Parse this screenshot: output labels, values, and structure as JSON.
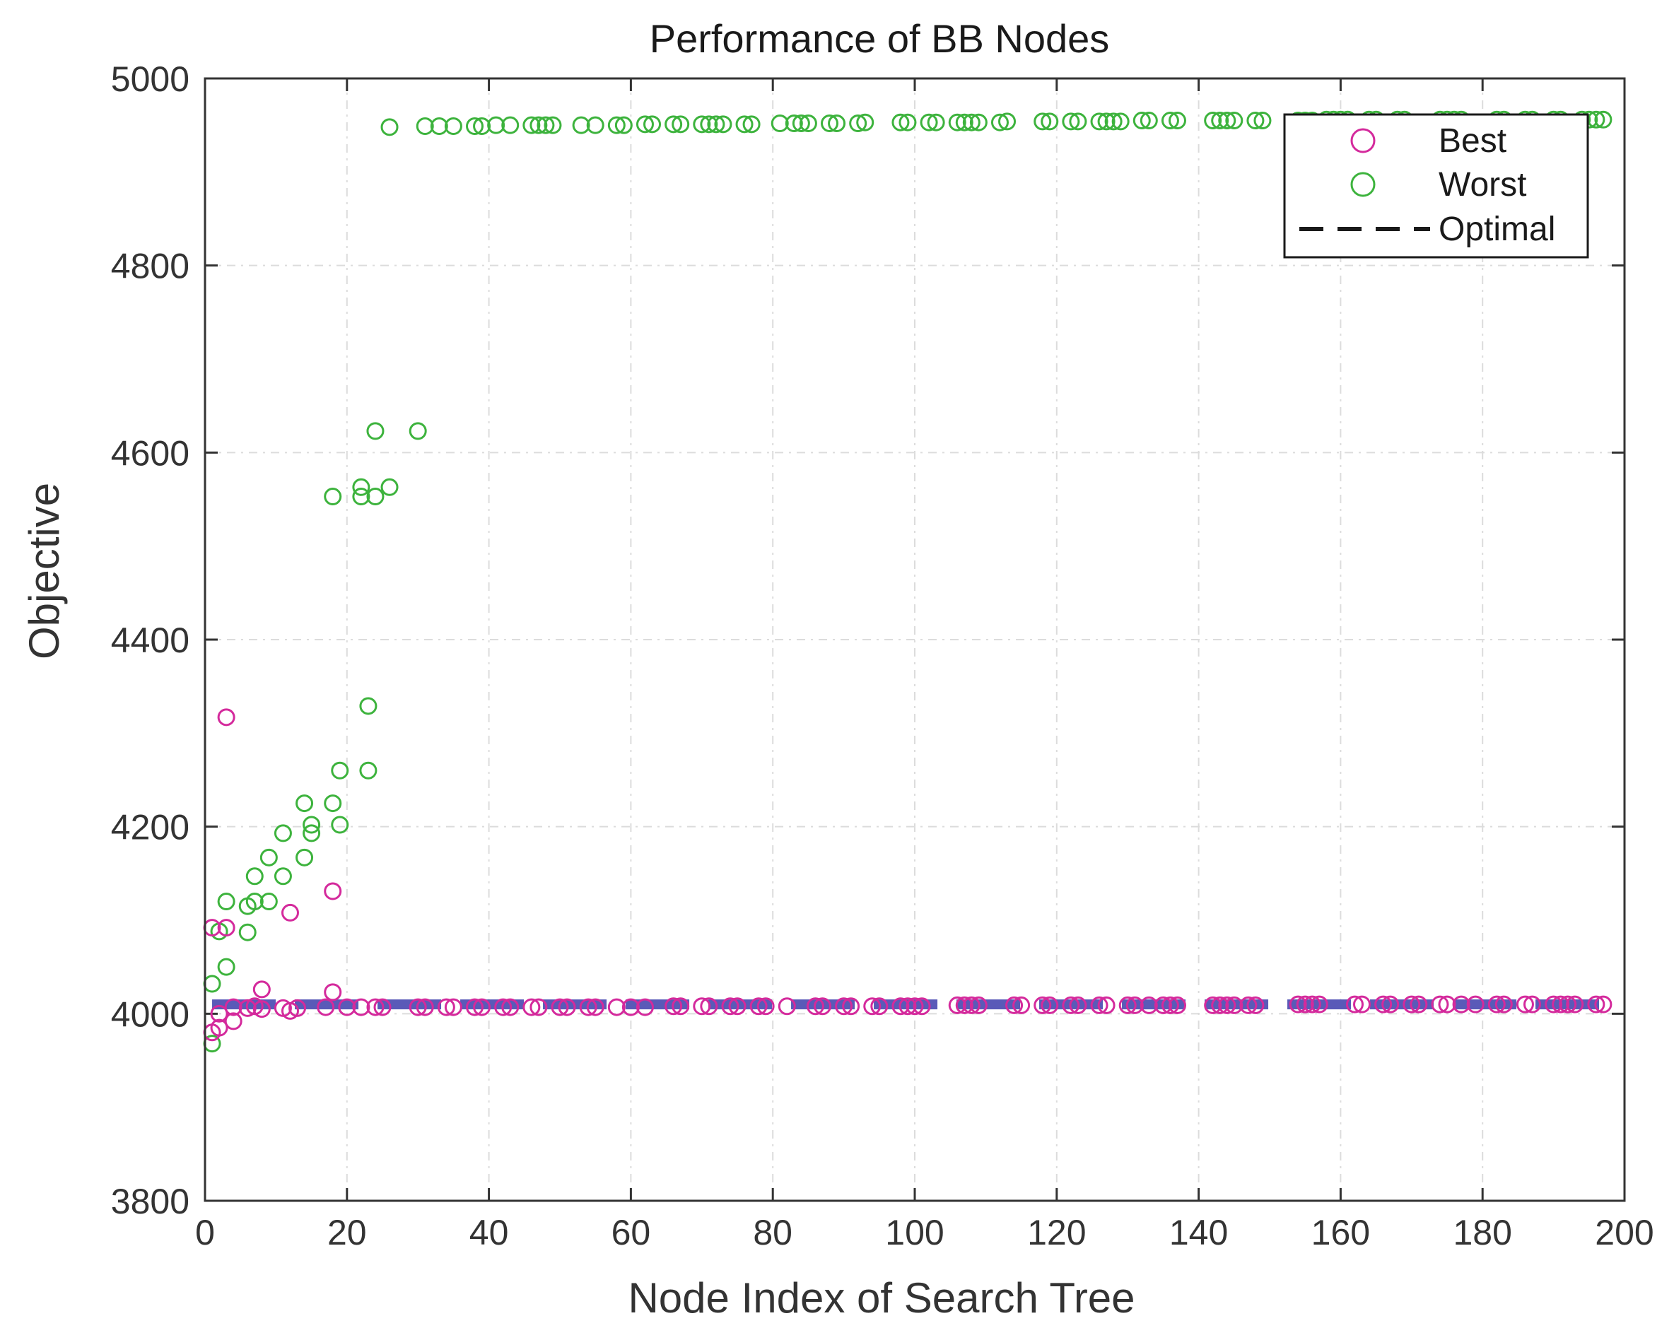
{
  "chart_data": {
    "type": "scatter",
    "title": "Performance of BB Nodes",
    "xlabel": "Node Index of Search Tree",
    "ylabel": "Objective",
    "xlim": [
      0,
      200
    ],
    "ylim": [
      3800,
      5000
    ],
    "xticks": [
      0,
      20,
      40,
      60,
      80,
      100,
      120,
      140,
      160,
      180,
      200
    ],
    "yticks": [
      3800,
      4000,
      4200,
      4400,
      4600,
      4800,
      5000
    ],
    "grid": true,
    "legend_position": "top-right",
    "series": [
      {
        "name": "Best",
        "marker": "circle",
        "color": "#d42a9c",
        "points": [
          [
            1,
            4092
          ],
          [
            1,
            3980
          ],
          [
            2,
            3985
          ],
          [
            2,
            4000
          ],
          [
            3,
            4317
          ],
          [
            3,
            4092
          ],
          [
            4,
            3992
          ],
          [
            4,
            4007
          ],
          [
            6,
            4006
          ],
          [
            7,
            4008
          ],
          [
            8,
            4005
          ],
          [
            8,
            4026
          ],
          [
            11,
            4006
          ],
          [
            12,
            4003
          ],
          [
            12,
            4108
          ],
          [
            13,
            4006
          ],
          [
            17,
            4007
          ],
          [
            18,
            4131
          ],
          [
            18,
            4023
          ],
          [
            20,
            4007
          ],
          [
            22,
            4007
          ],
          [
            24,
            4007
          ],
          [
            25,
            4007
          ],
          [
            30,
            4007
          ],
          [
            31,
            4007
          ],
          [
            34,
            4007
          ],
          [
            35,
            4007
          ],
          [
            38,
            4007
          ],
          [
            39,
            4007
          ],
          [
            42,
            4007
          ],
          [
            43,
            4007
          ],
          [
            46,
            4007
          ],
          [
            47,
            4007
          ],
          [
            50,
            4007
          ],
          [
            51,
            4007
          ],
          [
            54,
            4007
          ],
          [
            55,
            4007
          ],
          [
            58,
            4007
          ],
          [
            60,
            4007
          ],
          [
            62,
            4007
          ],
          [
            66,
            4008
          ],
          [
            67,
            4008
          ],
          [
            70,
            4008
          ],
          [
            71,
            4008
          ],
          [
            74,
            4008
          ],
          [
            75,
            4008
          ],
          [
            78,
            4008
          ],
          [
            79,
            4008
          ],
          [
            82,
            4008
          ],
          [
            86,
            4008
          ],
          [
            87,
            4008
          ],
          [
            90,
            4008
          ],
          [
            91,
            4008
          ],
          [
            94,
            4008
          ],
          [
            95,
            4008
          ],
          [
            98,
            4008
          ],
          [
            99,
            4008
          ],
          [
            100,
            4008
          ],
          [
            101,
            4008
          ],
          [
            106,
            4009
          ],
          [
            107,
            4009
          ],
          [
            108,
            4009
          ],
          [
            109,
            4009
          ],
          [
            114,
            4009
          ],
          [
            115,
            4009
          ],
          [
            118,
            4009
          ],
          [
            119,
            4009
          ],
          [
            122,
            4009
          ],
          [
            123,
            4009
          ],
          [
            126,
            4009
          ],
          [
            127,
            4009
          ],
          [
            130,
            4009
          ],
          [
            131,
            4009
          ],
          [
            133,
            4009
          ],
          [
            135,
            4009
          ],
          [
            136,
            4009
          ],
          [
            137,
            4009
          ],
          [
            142,
            4009
          ],
          [
            143,
            4009
          ],
          [
            144,
            4009
          ],
          [
            145,
            4009
          ],
          [
            147,
            4009
          ],
          [
            148,
            4009
          ],
          [
            154,
            4010
          ],
          [
            155,
            4010
          ],
          [
            156,
            4010
          ],
          [
            157,
            4010
          ],
          [
            162,
            4010
          ],
          [
            163,
            4010
          ],
          [
            166,
            4010
          ],
          [
            167,
            4010
          ],
          [
            170,
            4010
          ],
          [
            171,
            4010
          ],
          [
            174,
            4010
          ],
          [
            175,
            4010
          ],
          [
            177,
            4010
          ],
          [
            179,
            4010
          ],
          [
            182,
            4010
          ],
          [
            183,
            4010
          ],
          [
            186,
            4010
          ],
          [
            187,
            4010
          ],
          [
            190,
            4010
          ],
          [
            191,
            4010
          ],
          [
            192,
            4010
          ],
          [
            193,
            4010
          ],
          [
            196,
            4010
          ],
          [
            197,
            4010
          ]
        ]
      },
      {
        "name": "Worst",
        "marker": "circle",
        "color": "#3db33d",
        "points": [
          [
            1,
            3968
          ],
          [
            1,
            4032
          ],
          [
            2,
            4088
          ],
          [
            3,
            4050
          ],
          [
            3,
            4120
          ],
          [
            6,
            4087
          ],
          [
            6,
            4115
          ],
          [
            7,
            4120
          ],
          [
            7,
            4147
          ],
          [
            9,
            4120
          ],
          [
            9,
            4167
          ],
          [
            11,
            4147
          ],
          [
            11,
            4193
          ],
          [
            14,
            4167
          ],
          [
            14,
            4225
          ],
          [
            15,
            4193
          ],
          [
            15,
            4202
          ],
          [
            18,
            4225
          ],
          [
            18,
            4553
          ],
          [
            19,
            4202
          ],
          [
            19,
            4260
          ],
          [
            22,
            4553
          ],
          [
            22,
            4563
          ],
          [
            23,
            4260
          ],
          [
            23,
            4329
          ],
          [
            24,
            4553
          ],
          [
            24,
            4623
          ],
          [
            26,
            4563
          ],
          [
            26,
            4948
          ],
          [
            30,
            4623
          ],
          [
            31,
            4949
          ],
          [
            33,
            4949
          ],
          [
            35,
            4949
          ],
          [
            38,
            4949
          ],
          [
            39,
            4949
          ],
          [
            41,
            4950
          ],
          [
            43,
            4950
          ],
          [
            46,
            4950
          ],
          [
            47,
            4950
          ],
          [
            48,
            4950
          ],
          [
            49,
            4950
          ],
          [
            53,
            4950
          ],
          [
            55,
            4950
          ],
          [
            58,
            4950
          ],
          [
            59,
            4950
          ],
          [
            62,
            4951
          ],
          [
            63,
            4951
          ],
          [
            66,
            4951
          ],
          [
            67,
            4951
          ],
          [
            70,
            4951
          ],
          [
            71,
            4951
          ],
          [
            72,
            4951
          ],
          [
            73,
            4951
          ],
          [
            76,
            4951
          ],
          [
            77,
            4951
          ],
          [
            81,
            4952
          ],
          [
            83,
            4952
          ],
          [
            84,
            4952
          ],
          [
            85,
            4952
          ],
          [
            88,
            4952
          ],
          [
            89,
            4952
          ],
          [
            92,
            4952
          ],
          [
            93,
            4953
          ],
          [
            98,
            4953
          ],
          [
            99,
            4953
          ],
          [
            102,
            4953
          ],
          [
            103,
            4953
          ],
          [
            106,
            4953
          ],
          [
            107,
            4953
          ],
          [
            108,
            4953
          ],
          [
            109,
            4953
          ],
          [
            112,
            4953
          ],
          [
            113,
            4954
          ],
          [
            118,
            4954
          ],
          [
            119,
            4954
          ],
          [
            122,
            4954
          ],
          [
            123,
            4954
          ],
          [
            126,
            4954
          ],
          [
            127,
            4954
          ],
          [
            128,
            4954
          ],
          [
            129,
            4954
          ],
          [
            132,
            4955
          ],
          [
            133,
            4955
          ],
          [
            136,
            4955
          ],
          [
            137,
            4955
          ],
          [
            142,
            4955
          ],
          [
            143,
            4955
          ],
          [
            144,
            4955
          ],
          [
            145,
            4955
          ],
          [
            148,
            4955
          ],
          [
            149,
            4955
          ],
          [
            154,
            4955
          ],
          [
            155,
            4955
          ],
          [
            156,
            4955
          ],
          [
            158,
            4956
          ],
          [
            159,
            4956
          ],
          [
            160,
            4956
          ],
          [
            161,
            4956
          ],
          [
            164,
            4956
          ],
          [
            165,
            4956
          ],
          [
            168,
            4956
          ],
          [
            169,
            4956
          ],
          [
            174,
            4956
          ],
          [
            175,
            4956
          ],
          [
            176,
            4956
          ],
          [
            177,
            4956
          ],
          [
            182,
            4956
          ],
          [
            183,
            4956
          ],
          [
            186,
            4956
          ],
          [
            187,
            4956
          ],
          [
            190,
            4956
          ],
          [
            191,
            4956
          ],
          [
            194,
            4956
          ],
          [
            195,
            4956
          ],
          [
            196,
            4956
          ],
          [
            197,
            4956
          ]
        ]
      },
      {
        "name": "Optimal",
        "line_style": "dashed",
        "color": "#5a5ab8",
        "legend_color": "#1a1a1a",
        "x": [
          1,
          197
        ],
        "y": [
          4010,
          4010
        ]
      }
    ]
  }
}
